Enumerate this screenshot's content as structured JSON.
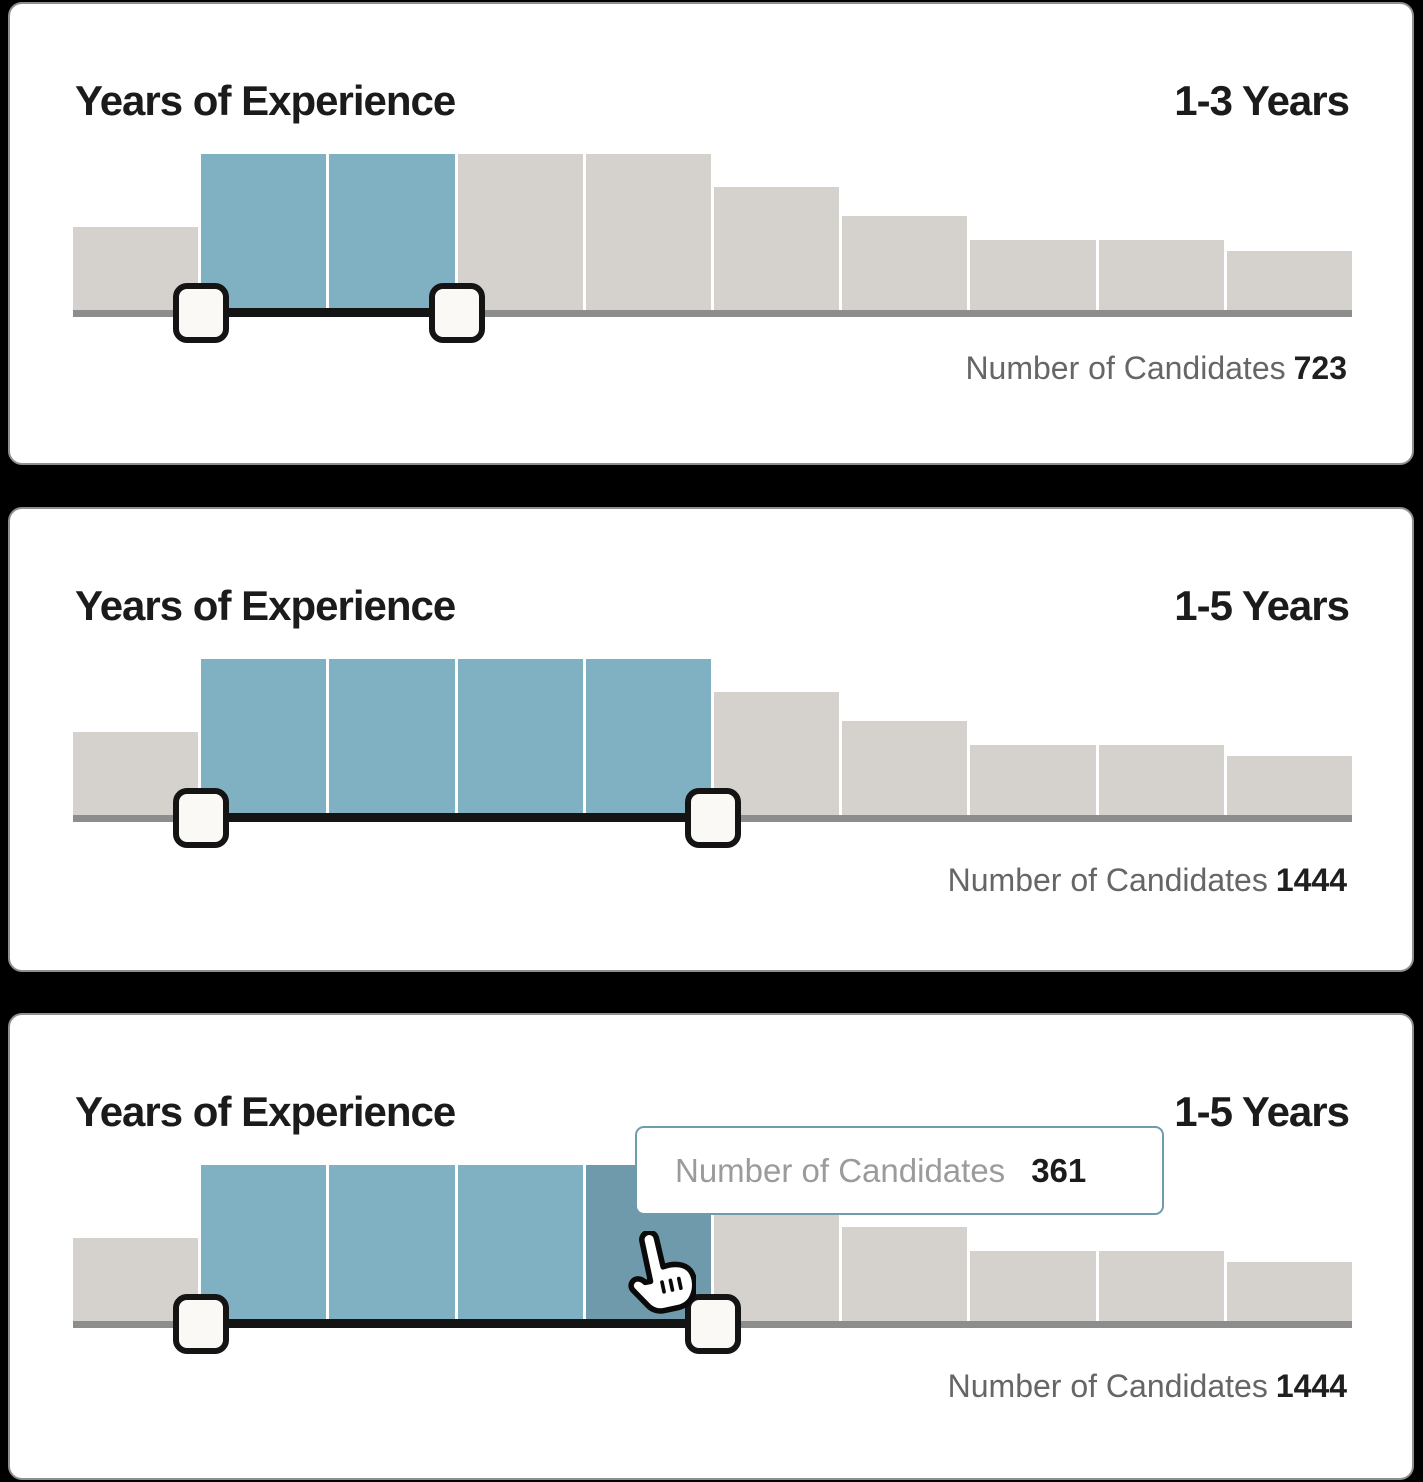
{
  "panels": [
    {
      "title": "Years of Experience",
      "range_label": "1-3 Years",
      "footer_label": "Number of Candidates",
      "footer_value": "723",
      "selection": {
        "from_bin": 1,
        "to_bin": 3
      }
    },
    {
      "title": "Years of Experience",
      "range_label": "1-5 Years",
      "footer_label": "Number of Candidates",
      "footer_value": "1444",
      "selection": {
        "from_bin": 1,
        "to_bin": 5
      }
    },
    {
      "title": "Years of Experience",
      "range_label": "1-5 Years",
      "footer_label": "Number of Candidates",
      "footer_value": "1444",
      "selection": {
        "from_bin": 1,
        "to_bin": 5
      },
      "hover_bin": 4,
      "tooltip": {
        "label": "Number of Candidates",
        "value": "361"
      }
    }
  ],
  "chart_data": [
    {
      "type": "bar",
      "title": "Years of Experience",
      "subtype": "histogram-range-slider",
      "bins": 10,
      "relative_heights": [
        0.53,
        1,
        1,
        1,
        1,
        0.79,
        0.6,
        0.45,
        0.45,
        0.38
      ],
      "selected_bins": [
        2,
        3
      ],
      "selected_range_label": "1-3 Years",
      "selected_total_candidates": 723,
      "colors": {
        "selected": "#80b1c3",
        "unselected": "#d5d1cc",
        "track": "#8d8d8d",
        "selected_line": "#141414"
      }
    },
    {
      "type": "bar",
      "title": "Years of Experience",
      "subtype": "histogram-range-slider",
      "bins": 10,
      "relative_heights": [
        0.53,
        1,
        1,
        1,
        1,
        0.79,
        0.6,
        0.45,
        0.45,
        0.38
      ],
      "selected_bins": [
        2,
        3,
        4,
        5
      ],
      "selected_range_label": "1-5 Years",
      "selected_total_candidates": 1444,
      "colors": {
        "selected": "#80b1c3",
        "unselected": "#d5d1cc",
        "track": "#8d8d8d",
        "selected_line": "#141414"
      }
    },
    {
      "type": "bar",
      "title": "Years of Experience",
      "subtype": "histogram-range-slider",
      "bins": 10,
      "relative_heights": [
        0.53,
        1,
        1,
        1,
        1,
        0.79,
        0.6,
        0.45,
        0.45,
        0.38
      ],
      "selected_bins": [
        2,
        3,
        4,
        5
      ],
      "selected_range_label": "1-5 Years",
      "selected_total_candidates": 1444,
      "hovered_bin": 5,
      "hovered_bin_candidates": 361,
      "colors": {
        "selected": "#80b1c3",
        "unselected": "#d5d1cc",
        "hovered": "#6f9aab",
        "track": "#8d8d8d",
        "selected_line": "#141414"
      }
    }
  ]
}
